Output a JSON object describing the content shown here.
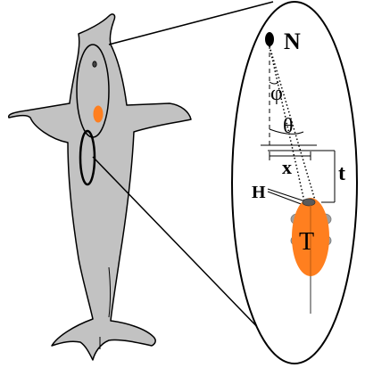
{
  "labels": {
    "N": "N",
    "phi": "φ",
    "theta": "θ",
    "x": "x",
    "t": "t",
    "H": "H",
    "T": "T"
  },
  "colors": {
    "dolphin_fill": "#c2c2c2",
    "outline": "#000000",
    "target_orange": "#ff7f1f",
    "transducer_gray": "#9e9e9e",
    "background": "#ffffff"
  }
}
